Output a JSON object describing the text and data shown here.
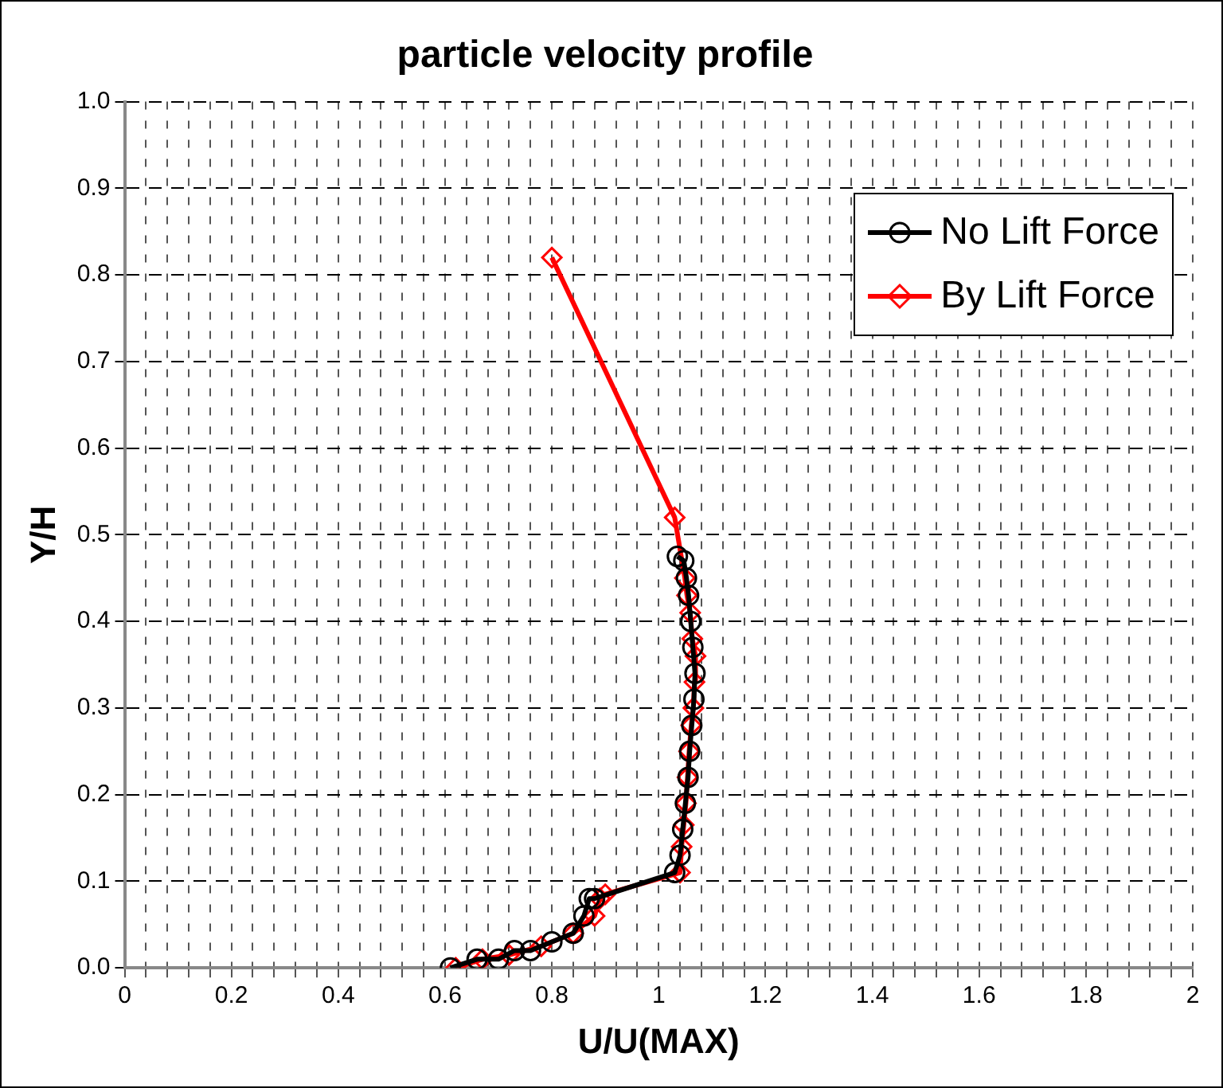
{
  "chart_data": {
    "type": "line",
    "title": "particle velocity profile",
    "xlabel": "U/U(MAX)",
    "ylabel": "Y/H",
    "xlim": [
      0,
      2
    ],
    "ylim": [
      0,
      1
    ],
    "xticks": [
      0,
      {
        "value": 0.04,
        "label": null
      },
      {
        "value": 0.08,
        "label": null
      },
      {
        "value": 0.12,
        "label": null
      },
      {
        "value": 0.16,
        "label": null
      },
      0.2,
      {
        "value": 0.24,
        "label": null
      },
      {
        "value": 0.28,
        "label": null
      },
      {
        "value": 0.32,
        "label": null
      },
      {
        "value": 0.36,
        "label": null
      },
      0.4,
      {
        "value": 0.44,
        "label": null
      },
      {
        "value": 0.48,
        "label": null
      },
      {
        "value": 0.52,
        "label": null
      },
      {
        "value": 0.56,
        "label": null
      },
      0.6,
      {
        "value": 0.64,
        "label": null
      },
      {
        "value": 0.68,
        "label": null
      },
      {
        "value": 0.72,
        "label": null
      },
      {
        "value": 0.76,
        "label": null
      },
      0.8,
      {
        "value": 0.84,
        "label": null
      },
      {
        "value": 0.88,
        "label": null
      },
      {
        "value": 0.92,
        "label": null
      },
      {
        "value": 0.96,
        "label": null
      },
      1,
      {
        "value": 1.04,
        "label": null
      },
      {
        "value": 1.08,
        "label": null
      },
      {
        "value": 1.12,
        "label": null
      },
      {
        "value": 1.16,
        "label": null
      },
      1.2,
      {
        "value": 1.24,
        "label": null
      },
      {
        "value": 1.28,
        "label": null
      },
      {
        "value": 1.32,
        "label": null
      },
      {
        "value": 1.36,
        "label": null
      },
      1.4,
      {
        "value": 1.44,
        "label": null
      },
      {
        "value": 1.48,
        "label": null
      },
      {
        "value": 1.52,
        "label": null
      },
      {
        "value": 1.56,
        "label": null
      },
      1.6,
      {
        "value": 1.64,
        "label": null
      },
      {
        "value": 1.68,
        "label": null
      },
      {
        "value": 1.72,
        "label": null
      },
      {
        "value": 1.76,
        "label": null
      },
      1.8,
      {
        "value": 1.84,
        "label": null
      },
      {
        "value": 1.88,
        "label": null
      },
      {
        "value": 1.92,
        "label": null
      },
      {
        "value": 1.96,
        "label": null
      },
      2
    ],
    "yticks": [
      {
        "value": 0,
        "label": "0.0"
      },
      0.1,
      0.2,
      0.3,
      0.4,
      0.5,
      0.6,
      0.7,
      0.8,
      0.9,
      {
        "value": 1,
        "label": "1.0"
      }
    ],
    "grid": true,
    "legend": "top right",
    "line_style": "solid",
    "series": [
      {
        "name": "No Lift Force",
        "color": "#000000",
        "marker": "circle",
        "x": [
          0.61,
          0.66,
          0.7,
          0.73,
          0.76,
          0.8,
          0.84,
          0.86,
          0.87,
          0.88,
          1.03,
          1.04,
          1.045,
          1.05,
          1.055,
          1.058,
          1.062,
          1.066,
          1.068,
          1.064,
          1.06,
          1.056,
          1.052,
          1.047,
          1.035
        ],
        "values": [
          0,
          0.01,
          0.01,
          0.02,
          0.02,
          0.03,
          0.04,
          0.06,
          0.08,
          0.08,
          0.11,
          0.13,
          0.16,
          0.19,
          0.22,
          0.25,
          0.28,
          0.31,
          0.34,
          0.37,
          0.4,
          0.43,
          0.45,
          0.47,
          0.475
        ]
      },
      {
        "name": "By Lift Force",
        "color": "#ff0000",
        "marker": "diamond",
        "x": [
          0.62,
          0.67,
          0.72,
          0.78,
          0.84,
          0.88,
          0.89,
          0.9,
          1.04,
          1.043,
          1.047,
          1.051,
          1.054,
          1.057,
          1.061,
          1.065,
          1.067,
          1.069,
          1.063,
          1.059,
          1.053,
          1.049,
          1.03,
          0.8
        ],
        "values": [
          0,
          0.01,
          0.015,
          0.025,
          0.04,
          0.06,
          0.08,
          0.085,
          0.11,
          0.14,
          0.165,
          0.19,
          0.22,
          0.25,
          0.28,
          0.3,
          0.33,
          0.36,
          0.38,
          0.41,
          0.43,
          0.45,
          0.52,
          0.82
        ]
      }
    ]
  }
}
